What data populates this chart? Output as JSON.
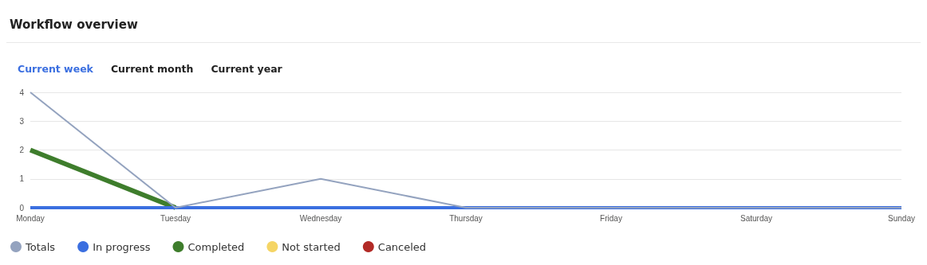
{
  "chart_data": {
    "type": "line",
    "title": "Workflow overview",
    "annotations": [
      "Current week",
      "Current month",
      "Current year"
    ],
    "categories": [
      "Monday",
      "Tuesday",
      "Wednesday",
      "Thursday",
      "Friday",
      "Saturday",
      "Sunday"
    ],
    "series": [
      {
        "name": "Totals",
        "color": "#94a3bf",
        "values": [
          4,
          0,
          1,
          0,
          0,
          0,
          0
        ]
      },
      {
        "name": "In progress",
        "color": "#3b6fe0",
        "values": [
          0,
          0,
          0,
          0,
          0,
          0,
          0
        ]
      },
      {
        "name": "Completed",
        "color": "#3e7d2c",
        "values": [
          2,
          0,
          null,
          null,
          null,
          null,
          null
        ]
      },
      {
        "name": "Not started",
        "color": "#f5d565",
        "values": [
          null,
          null,
          null,
          null,
          null,
          null,
          null
        ]
      },
      {
        "name": "Canceled",
        "color": "#b22a26",
        "values": [
          null,
          null,
          null,
          null,
          null,
          null,
          null
        ]
      }
    ],
    "ylim": [
      0,
      4
    ],
    "yticks": [
      0,
      1,
      2,
      3,
      4
    ],
    "grid": "y",
    "legend": "bottom left",
    "marker": "none",
    "line_style": "solid"
  }
}
